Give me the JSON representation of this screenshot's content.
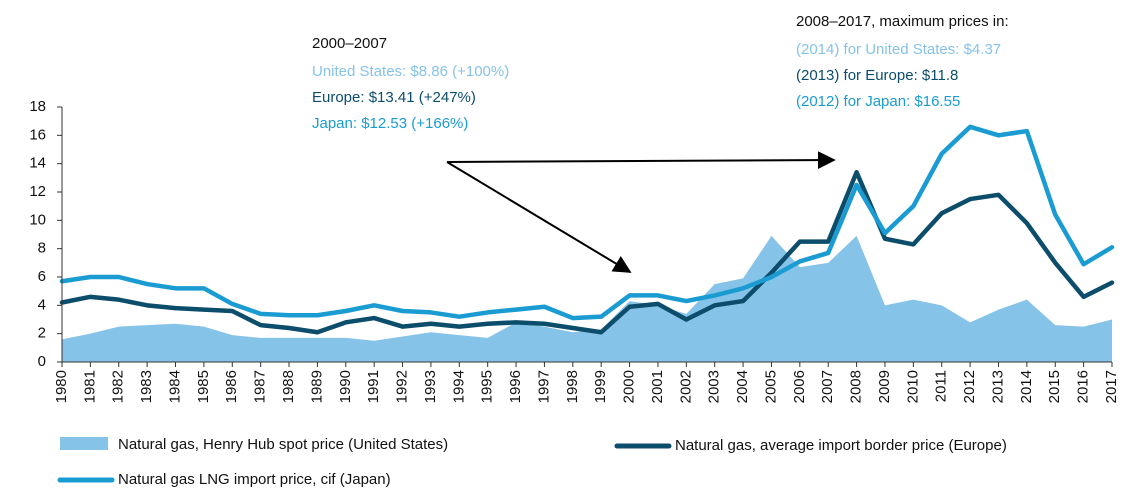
{
  "chart_data": {
    "type": "line",
    "x": [
      1980,
      1981,
      1982,
      1983,
      1984,
      1985,
      1986,
      1987,
      1988,
      1989,
      1990,
      1991,
      1992,
      1993,
      1994,
      1995,
      1996,
      1997,
      1998,
      1999,
      2000,
      2001,
      2002,
      2003,
      2004,
      2005,
      2006,
      2007,
      2008,
      2009,
      2010,
      2011,
      2012,
      2013,
      2014,
      2015,
      2016,
      2017
    ],
    "series": [
      {
        "name": "Natural gas, Henry Hub spot price (United States)",
        "kind": "area",
        "color": "#86c3e8",
        "values": [
          1.6,
          2.0,
          2.5,
          2.6,
          2.7,
          2.5,
          1.9,
          1.7,
          1.7,
          1.7,
          1.7,
          1.5,
          1.8,
          2.1,
          1.9,
          1.7,
          2.8,
          2.5,
          2.1,
          2.3,
          4.3,
          4.0,
          3.4,
          5.5,
          5.9,
          8.9,
          6.7,
          7.0,
          8.9,
          4.0,
          4.4,
          4.0,
          2.8,
          3.7,
          4.4,
          2.6,
          2.5,
          3.0
        ]
      },
      {
        "name": "Natural gas, average import border price (Europe)",
        "kind": "line",
        "color": "#0c4d6b",
        "values": [
          4.2,
          4.6,
          4.4,
          4.0,
          3.8,
          3.7,
          3.6,
          2.6,
          2.4,
          2.1,
          2.8,
          3.1,
          2.5,
          2.7,
          2.5,
          2.7,
          2.8,
          2.7,
          2.4,
          2.1,
          3.9,
          4.1,
          3.0,
          4.0,
          4.3,
          6.3,
          8.5,
          8.5,
          13.4,
          8.7,
          8.3,
          10.5,
          11.5,
          11.8,
          9.8,
          7.0,
          4.6,
          5.6
        ]
      },
      {
        "name": "Natural gas LNG import price, cif (Japan)",
        "kind": "line",
        "color": "#1a9cd3",
        "values": [
          5.7,
          6.0,
          6.0,
          5.5,
          5.2,
          5.2,
          4.1,
          3.4,
          3.3,
          3.3,
          3.6,
          4.0,
          3.6,
          3.5,
          3.2,
          3.5,
          3.7,
          3.9,
          3.1,
          3.2,
          4.7,
          4.7,
          4.3,
          4.7,
          5.2,
          6.0,
          7.1,
          7.7,
          12.5,
          9.1,
          11.0,
          14.7,
          16.6,
          16.0,
          16.3,
          10.4,
          6.9,
          8.1
        ]
      }
    ],
    "ylim": [
      0,
      18
    ],
    "yticks": [
      0,
      2,
      4,
      6,
      8,
      10,
      12,
      14,
      16,
      18
    ],
    "annotations": [
      {
        "text": "2000–2007",
        "color": "#111111"
      },
      {
        "text": "United States: $8.86 (+100%)",
        "color": "#86c3e8"
      },
      {
        "text": "Europe: $13.41 (+247%)",
        "color": "#0c4d6b"
      },
      {
        "text": "Japan: $12.53 (+166%)",
        "color": "#1a9cd3"
      },
      {
        "text": "2008–2017, maximum prices in:",
        "color": "#111111"
      },
      {
        "text": "(2014) for United States: $4.37",
        "color": "#86c3e8"
      },
      {
        "text": "(2013) for Europe: $11.8",
        "color": "#0c4d6b"
      },
      {
        "text": "(2012) for Japan: $16.55",
        "color": "#1a9cd3"
      }
    ]
  }
}
